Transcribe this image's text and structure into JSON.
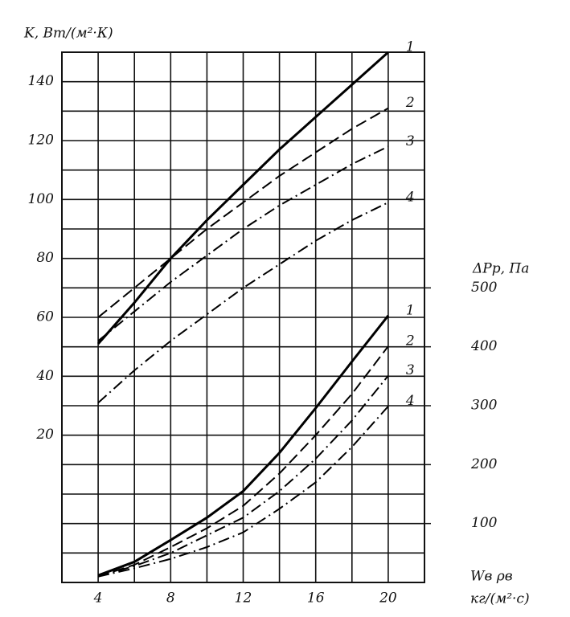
{
  "chart_data": {
    "type": "line",
    "y_label": "K, Вт/(м²·К)",
    "y2_label": "ΔPр, Па",
    "x_label": "Wв ρв",
    "x_units": "кг/(м²·с)",
    "x": [
      4,
      6,
      8,
      10,
      12,
      14,
      16,
      18,
      20
    ],
    "xlim": [
      2,
      22
    ],
    "xticks": [
      4,
      8,
      12,
      16,
      20
    ],
    "ylim": [
      -30,
      150
    ],
    "yticks": [
      20,
      40,
      60,
      80,
      100,
      120,
      140
    ],
    "y2lim": [
      0,
      900
    ],
    "y2ticks": [
      100,
      200,
      300,
      400,
      500
    ],
    "grid": true,
    "series": [
      {
        "name": "1",
        "color": "#000000",
        "dash": "solid",
        "values": [
          51,
          65,
          80,
          93,
          105,
          117,
          128,
          139,
          150
        ]
      },
      {
        "name": "2",
        "color": "#000000",
        "dash": "dashed",
        "values": [
          60,
          70,
          80,
          90,
          99,
          108,
          116,
          124,
          131
        ]
      },
      {
        "name": "3",
        "color": "#000000",
        "dash": "dashdot",
        "values": [
          52,
          62,
          72,
          81,
          90,
          98,
          105,
          112,
          118
        ]
      },
      {
        "name": "4",
        "color": "#000000",
        "dash": "dashdot",
        "values": [
          31,
          42,
          52,
          61,
          70,
          78,
          86,
          93,
          99
        ]
      },
      {
        "name": "1",
        "color": "#000000",
        "dash": "solid",
        "axis": "y2",
        "values": [
          12,
          35,
          72,
          110,
          155,
          220,
          296,
          375,
          453
        ]
      },
      {
        "name": "2",
        "color": "#000000",
        "dash": "dashed",
        "axis": "y2",
        "values": [
          10,
          30,
          60,
          92,
          130,
          185,
          250,
          320,
          401
        ]
      },
      {
        "name": "3",
        "color": "#000000",
        "dash": "dashdot",
        "axis": "y2",
        "values": [
          10,
          28,
          50,
          80,
          110,
          155,
          210,
          275,
          351
        ]
      },
      {
        "name": "4",
        "color": "#000000",
        "dash": "dashdot",
        "axis": "y2",
        "values": [
          10,
          24,
          40,
          60,
          85,
          125,
          170,
          230,
          299
        ]
      }
    ]
  }
}
